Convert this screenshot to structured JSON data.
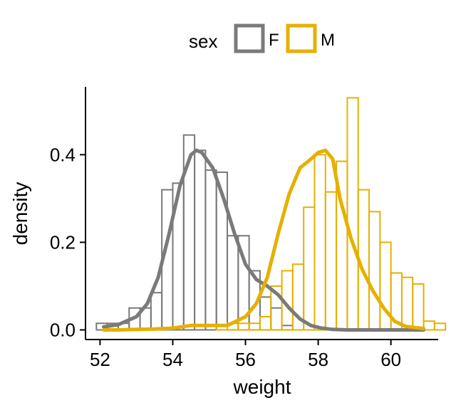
{
  "chart_data": {
    "type": "histogram-density",
    "xlabel": "weight",
    "ylabel": "density",
    "xlim": [
      51.6,
      61.3
    ],
    "ylim": [
      -0.022,
      0.555
    ],
    "xticks": [
      52,
      54,
      56,
      58,
      60
    ],
    "yticks": [
      0.0,
      0.2,
      0.4
    ],
    "ytick_labels": [
      "0.0",
      "0.2",
      "0.4"
    ],
    "grid": false,
    "legend": {
      "title": "sex",
      "position": "top",
      "entries": [
        "F",
        "M"
      ]
    },
    "bin_start": 51.9,
    "bin_width": 0.3,
    "series": [
      {
        "name": "F",
        "color": "#7a7a7a",
        "hist_density": [
          0.015,
          0.015,
          0.015,
          0.05,
          0.05,
          0.085,
          0.32,
          0.335,
          0.445,
          0.41,
          0.365,
          0.36,
          0.215,
          0.215,
          0.135,
          0.075,
          0.05,
          0.01,
          0.0,
          0.0,
          0.0,
          0.0,
          0.0,
          0.0,
          0.0,
          0.0,
          0.0,
          0.0,
          0.0,
          0.0,
          0.0,
          0.0
        ],
        "density_x": [
          52.1,
          52.5,
          53.0,
          53.3,
          53.6,
          53.9,
          54.2,
          54.5,
          54.65,
          54.8,
          55.1,
          55.4,
          55.7,
          56.0,
          56.3,
          56.6,
          56.9,
          57.2,
          57.5,
          57.8,
          58.1,
          58.4,
          58.8,
          59.2,
          59.6,
          60.0,
          60.4,
          60.9
        ],
        "density_y": [
          0.007,
          0.012,
          0.03,
          0.06,
          0.12,
          0.22,
          0.33,
          0.4,
          0.41,
          0.405,
          0.37,
          0.3,
          0.22,
          0.15,
          0.115,
          0.1,
          0.08,
          0.05,
          0.025,
          0.01,
          0.004,
          0.001,
          0.0,
          0.0,
          0.0,
          0.0,
          0.0,
          0.0
        ]
      },
      {
        "name": "M",
        "color": "#e6b000",
        "hist_density": [
          0.0,
          0.0,
          0.0,
          0.0,
          0.0,
          0.0,
          0.0,
          0.0,
          0.0,
          0.0,
          0.0,
          0.01,
          0.015,
          0.015,
          0.015,
          0.03,
          0.1,
          0.135,
          0.15,
          0.28,
          0.4,
          0.315,
          0.385,
          0.53,
          0.32,
          0.27,
          0.2,
          0.13,
          0.12,
          0.105,
          0.02,
          0.015
        ],
        "density_x": [
          52.1,
          52.5,
          53.0,
          53.5,
          54.0,
          54.5,
          55.0,
          55.5,
          56.0,
          56.3,
          56.6,
          56.9,
          57.2,
          57.5,
          57.8,
          58.0,
          58.2,
          58.4,
          58.6,
          58.9,
          59.2,
          59.5,
          59.8,
          60.1,
          60.4,
          60.9
        ],
        "density_y": [
          0.0,
          0.0,
          0.001,
          0.002,
          0.004,
          0.01,
          0.01,
          0.01,
          0.03,
          0.06,
          0.12,
          0.22,
          0.31,
          0.37,
          0.39,
          0.405,
          0.41,
          0.39,
          0.3,
          0.21,
          0.14,
          0.09,
          0.05,
          0.02,
          0.008,
          0.003
        ]
      }
    ]
  }
}
